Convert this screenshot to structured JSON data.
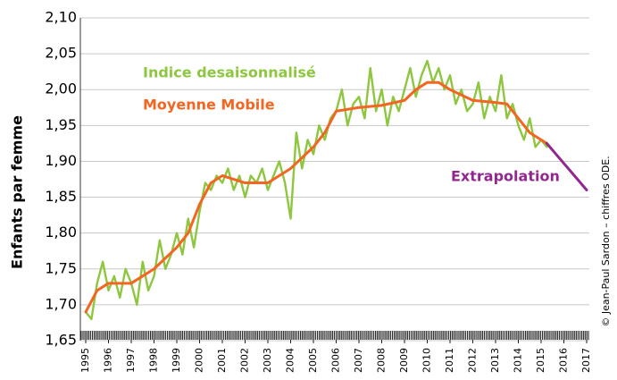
{
  "chart_data": {
    "type": "line",
    "ylabel": "Enfants par femme",
    "credit": "© Jean-Paul Sardon – chiffres ODE.",
    "grid": true,
    "xlim": [
      1995,
      2017
    ],
    "xticks": [
      1995,
      1996,
      1997,
      1998,
      1999,
      2000,
      2001,
      2002,
      2003,
      2004,
      2005,
      2006,
      2007,
      2008,
      2009,
      2010,
      2011,
      2012,
      2013,
      2014,
      2015,
      2016,
      2017
    ],
    "ylim": [
      1.65,
      2.1
    ],
    "yticks": [
      {
        "value": 1.65,
        "label": "1,65"
      },
      {
        "value": 1.7,
        "label": "1,70"
      },
      {
        "value": 1.75,
        "label": "1,75"
      },
      {
        "value": 1.8,
        "label": "1,80"
      },
      {
        "value": 1.85,
        "label": "1,85"
      },
      {
        "value": 1.9,
        "label": "1,90"
      },
      {
        "value": 1.95,
        "label": "1,95"
      },
      {
        "value": 2.0,
        "label": "2,00"
      },
      {
        "value": 2.05,
        "label": "2,05"
      },
      {
        "value": 2.1,
        "label": "2,10"
      }
    ],
    "series": [
      {
        "name": "Indice desaisonnalisé",
        "color": "#8dc63f",
        "x": [
          1995,
          1995.25,
          1995.5,
          1995.75,
          1996,
          1996.25,
          1996.5,
          1996.75,
          1997,
          1997.25,
          1997.5,
          1997.75,
          1998,
          1998.25,
          1998.5,
          1998.75,
          1999,
          1999.25,
          1999.5,
          1999.75,
          2000,
          2000.25,
          2000.5,
          2000.75,
          2001,
          2001.25,
          2001.5,
          2001.75,
          2002,
          2002.25,
          2002.5,
          2002.75,
          2003,
          2003.25,
          2003.5,
          2003.75,
          2004,
          2004.25,
          2004.5,
          2004.75,
          2005,
          2005.25,
          2005.5,
          2005.75,
          2006,
          2006.25,
          2006.5,
          2006.75,
          2007,
          2007.25,
          2007.5,
          2007.75,
          2008,
          2008.25,
          2008.5,
          2008.75,
          2009,
          2009.25,
          2009.5,
          2009.75,
          2010,
          2010.25,
          2010.5,
          2010.75,
          2011,
          2011.25,
          2011.5,
          2011.75,
          2012,
          2012.25,
          2012.5,
          2012.75,
          2013,
          2013.25,
          2013.5,
          2013.75,
          2014,
          2014.25,
          2014.5,
          2014.75,
          2015,
          2015.25
        ],
        "values": [
          1.69,
          1.68,
          1.73,
          1.76,
          1.72,
          1.74,
          1.71,
          1.75,
          1.73,
          1.7,
          1.76,
          1.72,
          1.74,
          1.79,
          1.75,
          1.77,
          1.8,
          1.77,
          1.82,
          1.78,
          1.83,
          1.87,
          1.86,
          1.88,
          1.87,
          1.89,
          1.86,
          1.88,
          1.85,
          1.88,
          1.87,
          1.89,
          1.86,
          1.88,
          1.9,
          1.87,
          1.82,
          1.94,
          1.89,
          1.93,
          1.91,
          1.95,
          1.93,
          1.96,
          1.97,
          2.0,
          1.95,
          1.98,
          1.99,
          1.96,
          2.03,
          1.97,
          2.0,
          1.95,
          1.99,
          1.97,
          2.0,
          2.03,
          1.99,
          2.02,
          2.04,
          2.01,
          2.03,
          2.0,
          2.02,
          1.98,
          2.0,
          1.97,
          1.98,
          2.01,
          1.96,
          1.99,
          1.97,
          2.02,
          1.96,
          1.98,
          1.95,
          1.93,
          1.96,
          1.92,
          1.93,
          1.92
        ]
      },
      {
        "name": "Moyenne Mobile",
        "color": "#f26522",
        "x": [
          1995,
          1995.5,
          1996,
          1997,
          1997.5,
          1998,
          1999,
          1999.5,
          2000,
          2000.5,
          2001,
          2002,
          2003,
          2003.5,
          2004,
          2005,
          2005.5,
          2006,
          2007,
          2008,
          2009,
          2009.5,
          2010,
          2010.5,
          2011,
          2012,
          2013,
          2013.5,
          2014,
          2014.5,
          2015.25
        ],
        "values": [
          1.69,
          1.72,
          1.73,
          1.73,
          1.74,
          1.75,
          1.78,
          1.8,
          1.84,
          1.87,
          1.88,
          1.87,
          1.87,
          1.88,
          1.89,
          1.92,
          1.94,
          1.97,
          1.975,
          1.978,
          1.985,
          2.0,
          2.01,
          2.01,
          2.0,
          1.985,
          1.982,
          1.98,
          1.96,
          1.94,
          1.925
        ]
      },
      {
        "name": "Extrapolation",
        "color": "#92278f",
        "x": [
          2015.25,
          2017
        ],
        "values": [
          1.925,
          1.86
        ]
      }
    ]
  }
}
